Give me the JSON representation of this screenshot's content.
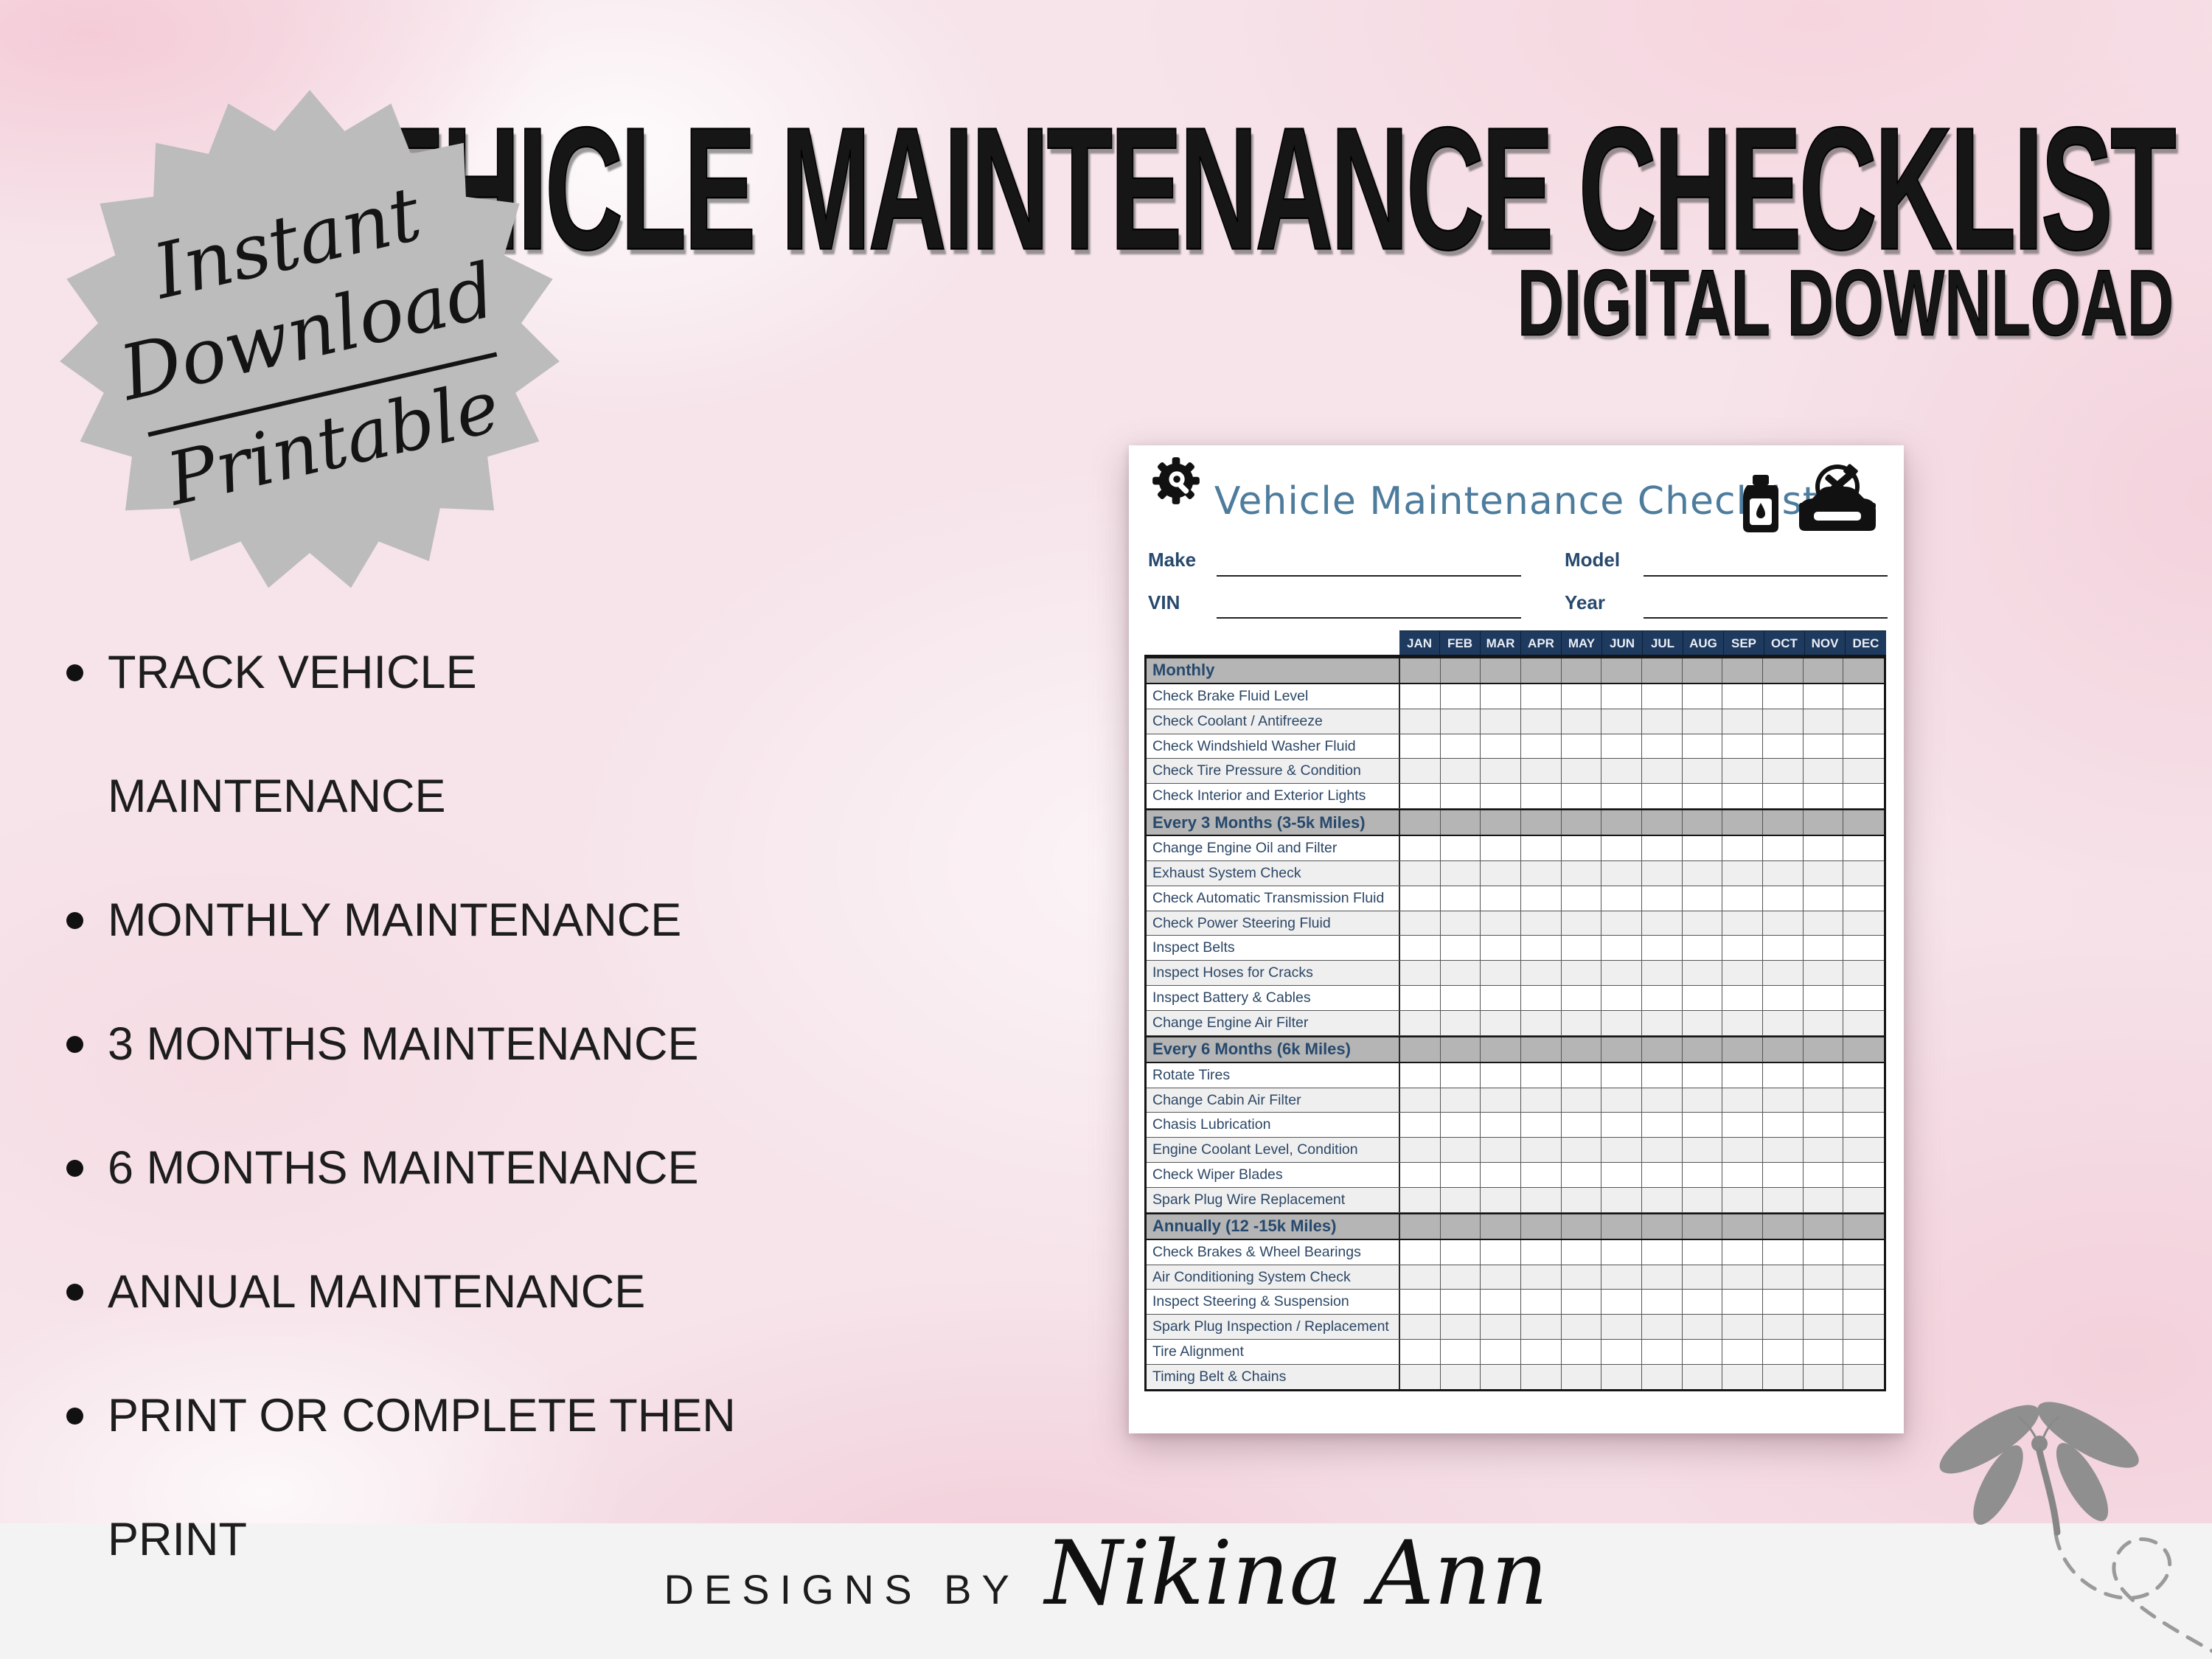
{
  "poster": {
    "title": "VEHICLE MAINTENANCE CHECKLIST",
    "subtitle": "DIGITAL DOWNLOAD",
    "badge": {
      "line1": "Instant",
      "line2": "Download",
      "line3": "Printable"
    },
    "features": [
      "TRACK VEHICLE MAINTENANCE",
      "MONTHLY MAINTENANCE",
      "3 MONTHS MAINTENANCE",
      "6 MONTHS MAINTENANCE",
      "ANNUAL MAINTENANCE",
      "PRINT OR COMPLETE THEN PRINT"
    ],
    "footer": {
      "prefix": "DESIGNS BY",
      "name": "Nikina Ann"
    }
  },
  "document": {
    "title": "Vehicle Maintenance Checklist",
    "fields": {
      "make": "Make",
      "model": "Model",
      "vin": "VIN",
      "year": "Year"
    },
    "months": [
      "JAN",
      "FEB",
      "MAR",
      "APR",
      "MAY",
      "JUN",
      "JUL",
      "AUG",
      "SEP",
      "OCT",
      "NOV",
      "DEC"
    ],
    "sections": [
      {
        "header": "Monthly",
        "tasks": [
          "Check Brake Fluid Level",
          "Check Coolant / Antifreeze",
          "Check Windshield Washer Fluid",
          "Check Tire Pressure & Condition",
          "Check Interior and Exterior Lights"
        ]
      },
      {
        "header": "Every 3 Months (3-5k Miles)",
        "tasks": [
          "Change Engine Oil and Filter",
          "Exhaust System Check",
          "Check Automatic Transmission Fluid",
          "Check Power Steering Fluid",
          "Inspect Belts",
          "Inspect Hoses for Cracks",
          "Inspect Battery & Cables",
          "Change Engine Air Filter"
        ]
      },
      {
        "header": "Every 6 Months (6k Miles)",
        "tasks": [
          "Rotate Tires",
          "Change Cabin Air Filter",
          "Chasis Lubrication",
          "Engine Coolant Level, Condition",
          "Check Wiper Blades",
          "Spark Plug Wire Replacement"
        ]
      },
      {
        "header": "Annually (12 -15k Miles)",
        "tasks": [
          "Check Brakes & Wheel Bearings",
          "Air Conditioning System Check",
          "Inspect Steering & Suspension",
          "Spark Plug Inspection / Replacement",
          "Tire Alignment",
          "Timing Belt & Chains"
        ]
      }
    ],
    "icons": {
      "top_left": "gear-wrench-icon",
      "top_right_1": "oil-can-icon",
      "top_right_2": "car-service-icon"
    }
  },
  "decor": {
    "corner_icon": "dragonfly-icon"
  },
  "colors": {
    "navy": "#1e3a5e",
    "steel_blue": "#4e7c9d",
    "section_gray": "#b5b5b5",
    "badge_gray": "#bcbcbc",
    "pink_bg": "#f6e4ea",
    "footer_strip": "#f4f3f3"
  }
}
